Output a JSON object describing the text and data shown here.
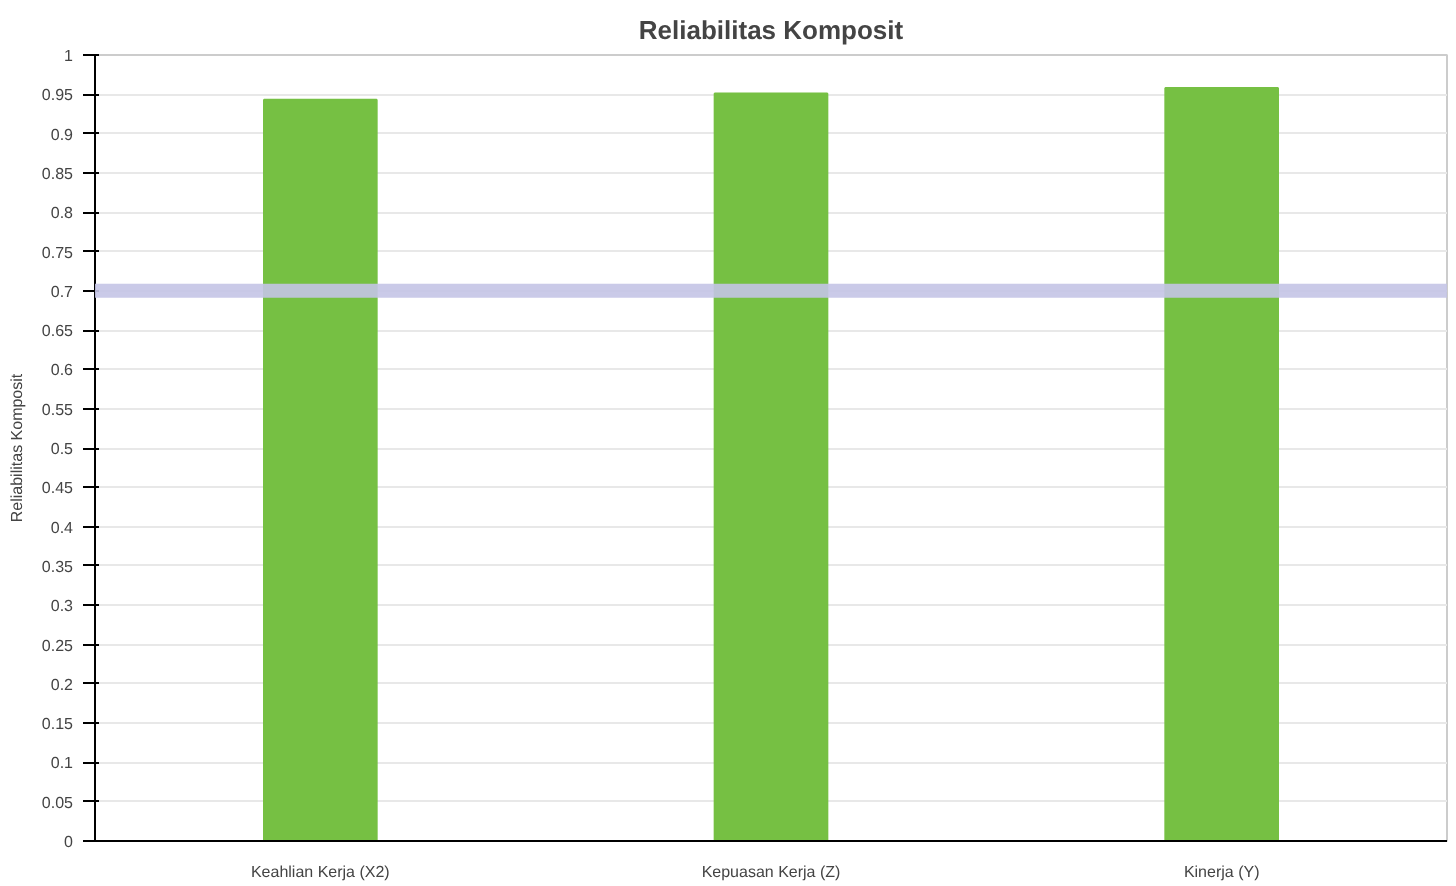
{
  "chart_data": {
    "type": "bar",
    "title": "Reliabilitas Komposit",
    "ylabel": "Reliabilitas Komposit",
    "categories": [
      "Keahlian Kerja (X2)",
      "Kepuasan Kerja (Z)",
      "Kinerja (Y)"
    ],
    "values": [
      0.943,
      0.951,
      0.958
    ],
    "color": "#76c043",
    "ylim": [
      0,
      1
    ],
    "yticks": [
      0,
      0.05,
      0.1,
      0.15,
      0.2,
      0.25,
      0.3,
      0.35,
      0.4,
      0.45,
      0.5,
      0.55,
      0.6,
      0.65,
      0.7,
      0.75,
      0.8,
      0.85,
      0.9,
      0.95,
      1
    ],
    "grid": "y",
    "ref_lines": [
      {
        "axis": "y",
        "value": 0.7,
        "color": "#c4c4e6"
      }
    ]
  }
}
